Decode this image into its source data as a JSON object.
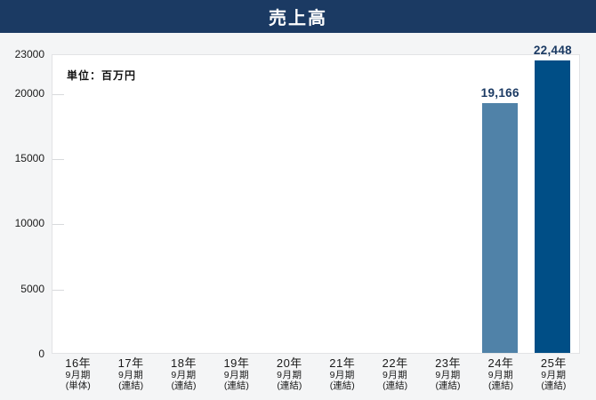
{
  "title": "売上高",
  "unit_label": "単位：百万円",
  "colors": {
    "banner_bg": "#1B3A63",
    "banner_text": "#FFFFFF",
    "page_bg": "#F4F5F6",
    "plot_bg": "#FFFFFF",
    "plot_border": "#E2E3E5",
    "tick": "#D8DADC",
    "bar_light": "#5082A8",
    "bar_dark": "#004E86",
    "value_label_text": "#1B3A63",
    "axis_text": "#1A1A1A"
  },
  "chart_data": {
    "type": "bar",
    "title": "売上高",
    "subtitle": "単位：百万円",
    "categories": [
      "16年9月期(単体)",
      "17年9月期(連結)",
      "18年9月期(連結)",
      "19年9月期(連結)",
      "20年9月期(連結)",
      "21年9月期(連結)",
      "22年9月期(連結)",
      "23年9月期(連結)",
      "24年9月期(連結)",
      "25年9月期(連結)"
    ],
    "category_lines": [
      [
        "16年",
        "9月期",
        "(単体)"
      ],
      [
        "17年",
        "9月期",
        "(連結)"
      ],
      [
        "18年",
        "9月期",
        "(連結)"
      ],
      [
        "19年",
        "9月期",
        "(連結)"
      ],
      [
        "20年",
        "9月期",
        "(連結)"
      ],
      [
        "21年",
        "9月期",
        "(連結)"
      ],
      [
        "22年",
        "9月期",
        "(連結)"
      ],
      [
        "23年",
        "9月期",
        "(連結)"
      ],
      [
        "24年",
        "9月期",
        "(連結)"
      ],
      [
        "25年",
        "9月期",
        "(連結)"
      ]
    ],
    "values": [
      null,
      null,
      null,
      null,
      null,
      null,
      null,
      null,
      19166,
      22448
    ],
    "bar_labels": [
      null,
      null,
      null,
      null,
      null,
      null,
      null,
      null,
      "19,166",
      "22,448"
    ],
    "bar_colors": [
      null,
      null,
      null,
      null,
      null,
      null,
      null,
      null,
      "#5082A8",
      "#004E86"
    ],
    "ylabel": "百万円",
    "xlabel": "",
    "ylim": [
      0,
      23000
    ],
    "yticks": [
      0,
      5000,
      10000,
      15000,
      20000,
      23000
    ],
    "ytick_labels": [
      "0",
      "5000",
      "10000",
      "15000",
      "20000",
      "23000"
    ],
    "grid": "short inward ticks on y-axis only",
    "legend": "none"
  }
}
